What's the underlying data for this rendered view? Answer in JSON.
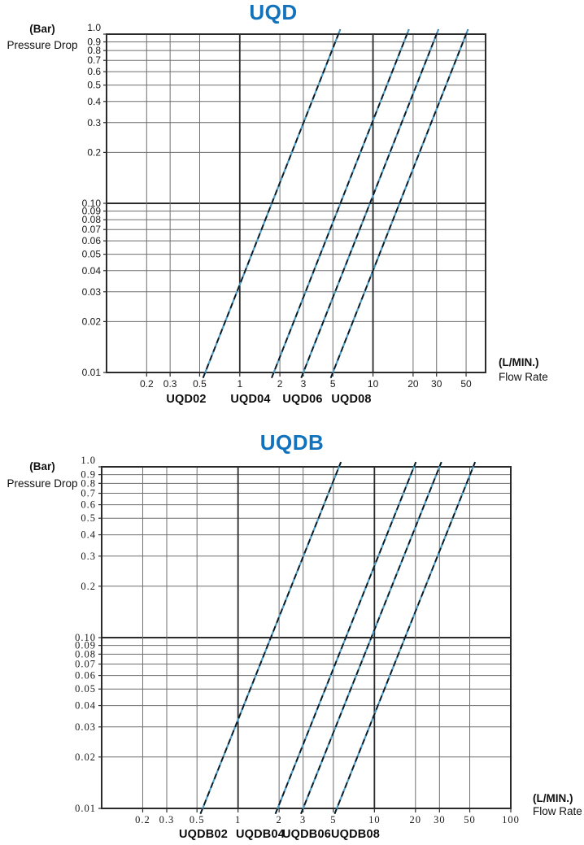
{
  "chart_data": [
    {
      "id": "UQD",
      "type": "line",
      "title": "UQD",
      "title_color": "#1272BC",
      "x_scale": "log",
      "y_scale": "log",
      "xlim": [
        0.1,
        70
      ],
      "ylim": [
        0.01,
        1.0
      ],
      "grid": true,
      "legend_position": "below-axis",
      "ylabel_unit": "(Bar)",
      "ylabel": "Pressure Drop",
      "xlabel_unit": "(L/MIN.)",
      "xlabel": "Flow Rate",
      "x_ticks": [
        {
          "v": 0.2,
          "label": "0.2"
        },
        {
          "v": 0.3,
          "label": "0.3"
        },
        {
          "v": 0.5,
          "label": "0.5"
        },
        {
          "v": 1,
          "label": "1"
        },
        {
          "v": 2,
          "label": "2"
        },
        {
          "v": 3,
          "label": "3"
        },
        {
          "v": 5,
          "label": "5"
        },
        {
          "v": 10,
          "label": "10"
        },
        {
          "v": 20,
          "label": "20"
        },
        {
          "v": 30,
          "label": "30"
        },
        {
          "v": 50,
          "label": "50"
        }
      ],
      "y_ticks": [
        {
          "v": 1.0,
          "label": "1.0"
        },
        {
          "v": 0.9,
          "label": "0.9"
        },
        {
          "v": 0.8,
          "label": "0.8"
        },
        {
          "v": 0.7,
          "label": "0.7"
        },
        {
          "v": 0.6,
          "label": "0.6"
        },
        {
          "v": 0.5,
          "label": "0.5"
        },
        {
          "v": 0.4,
          "label": "0.4"
        },
        {
          "v": 0.3,
          "label": "0.3"
        },
        {
          "v": 0.2,
          "label": "0.2"
        },
        {
          "v": 0.1,
          "label": "0.10"
        },
        {
          "v": 0.09,
          "label": "0.09"
        },
        {
          "v": 0.08,
          "label": "0.08"
        },
        {
          "v": 0.07,
          "label": "0.07"
        },
        {
          "v": 0.06,
          "label": "0.06"
        },
        {
          "v": 0.05,
          "label": "0.05"
        },
        {
          "v": 0.04,
          "label": "0.04"
        },
        {
          "v": 0.03,
          "label": "0.03"
        },
        {
          "v": 0.02,
          "label": "0.02"
        },
        {
          "v": 0.01,
          "label": "0.01"
        }
      ],
      "major_x": [
        1,
        10
      ],
      "major_y": [
        0.1
      ],
      "line_style": {
        "base_color": "#4C9CC5",
        "dash_color": "#10161C",
        "pattern": "dashed-over-solid"
      },
      "series": [
        {
          "name": "UQD02",
          "points": [
            [
              0.55,
              0.01
            ],
            [
              5.5,
              1.0
            ]
          ]
        },
        {
          "name": "UQD04",
          "points": [
            [
              1.8,
              0.01
            ],
            [
              18,
              1.0
            ]
          ]
        },
        {
          "name": "UQD06",
          "points": [
            [
              3.0,
              0.01
            ],
            [
              30,
              1.0
            ]
          ]
        },
        {
          "name": "UQD08",
          "points": [
            [
              5.0,
              0.01
            ],
            [
              50,
              1.0
            ]
          ]
        }
      ]
    },
    {
      "id": "UQDB",
      "type": "line",
      "title": "UQDB",
      "title_color": "#1272BC",
      "x_scale": "log",
      "y_scale": "log",
      "xlim": [
        0.1,
        100
      ],
      "ylim": [
        0.01,
        1.0
      ],
      "grid": true,
      "legend_position": "below-axis",
      "ylabel_unit": "(Bar)",
      "ylabel": "Pressure Drop",
      "xlabel_unit": "(L/MIN.)",
      "xlabel": "Flow Rate",
      "x_ticks": [
        {
          "v": 0.2,
          "label": "0.2"
        },
        {
          "v": 0.3,
          "label": "0.3"
        },
        {
          "v": 0.5,
          "label": "0.5"
        },
        {
          "v": 1,
          "label": "1"
        },
        {
          "v": 2,
          "label": "2"
        },
        {
          "v": 3,
          "label": "3"
        },
        {
          "v": 5,
          "label": "5"
        },
        {
          "v": 10,
          "label": "10"
        },
        {
          "v": 20,
          "label": "20"
        },
        {
          "v": 30,
          "label": "30"
        },
        {
          "v": 50,
          "label": "50"
        },
        {
          "v": 100,
          "label": "100"
        }
      ],
      "y_ticks": [
        {
          "v": 1.0,
          "label": "1.0"
        },
        {
          "v": 0.9,
          "label": "0.9"
        },
        {
          "v": 0.8,
          "label": "0.8"
        },
        {
          "v": 0.7,
          "label": "0.7"
        },
        {
          "v": 0.6,
          "label": "0.6"
        },
        {
          "v": 0.5,
          "label": "0.5"
        },
        {
          "v": 0.4,
          "label": "0.4"
        },
        {
          "v": 0.3,
          "label": "0.3"
        },
        {
          "v": 0.2,
          "label": "0.2"
        },
        {
          "v": 0.1,
          "label": "0.10"
        },
        {
          "v": 0.09,
          "label": "0.09"
        },
        {
          "v": 0.08,
          "label": "0.08"
        },
        {
          "v": 0.07,
          "label": "0.07"
        },
        {
          "v": 0.06,
          "label": "0.06"
        },
        {
          "v": 0.05,
          "label": "0.05"
        },
        {
          "v": 0.04,
          "label": "0.04"
        },
        {
          "v": 0.03,
          "label": "0.03"
        },
        {
          "v": 0.02,
          "label": "0.02"
        },
        {
          "v": 0.01,
          "label": "0.01"
        }
      ],
      "major_x": [
        1,
        10
      ],
      "major_y": [
        0.1
      ],
      "line_style": {
        "base_color": "#4C9CC5",
        "dash_color": "#10161C",
        "pattern": "dashed-over-solid"
      },
      "series": [
        {
          "name": "UQDB02",
          "points": [
            [
              0.55,
              0.01
            ],
            [
              5.5,
              1.0
            ]
          ]
        },
        {
          "name": "UQDB04",
          "points": [
            [
              1.95,
              0.01
            ],
            [
              19.5,
              1.0
            ]
          ]
        },
        {
          "name": "UQDB06",
          "points": [
            [
              3.0,
              0.01
            ],
            [
              30,
              1.0
            ]
          ]
        },
        {
          "name": "UQDB08",
          "points": [
            [
              5.3,
              0.01
            ],
            [
              53,
              1.0
            ]
          ]
        }
      ]
    }
  ]
}
